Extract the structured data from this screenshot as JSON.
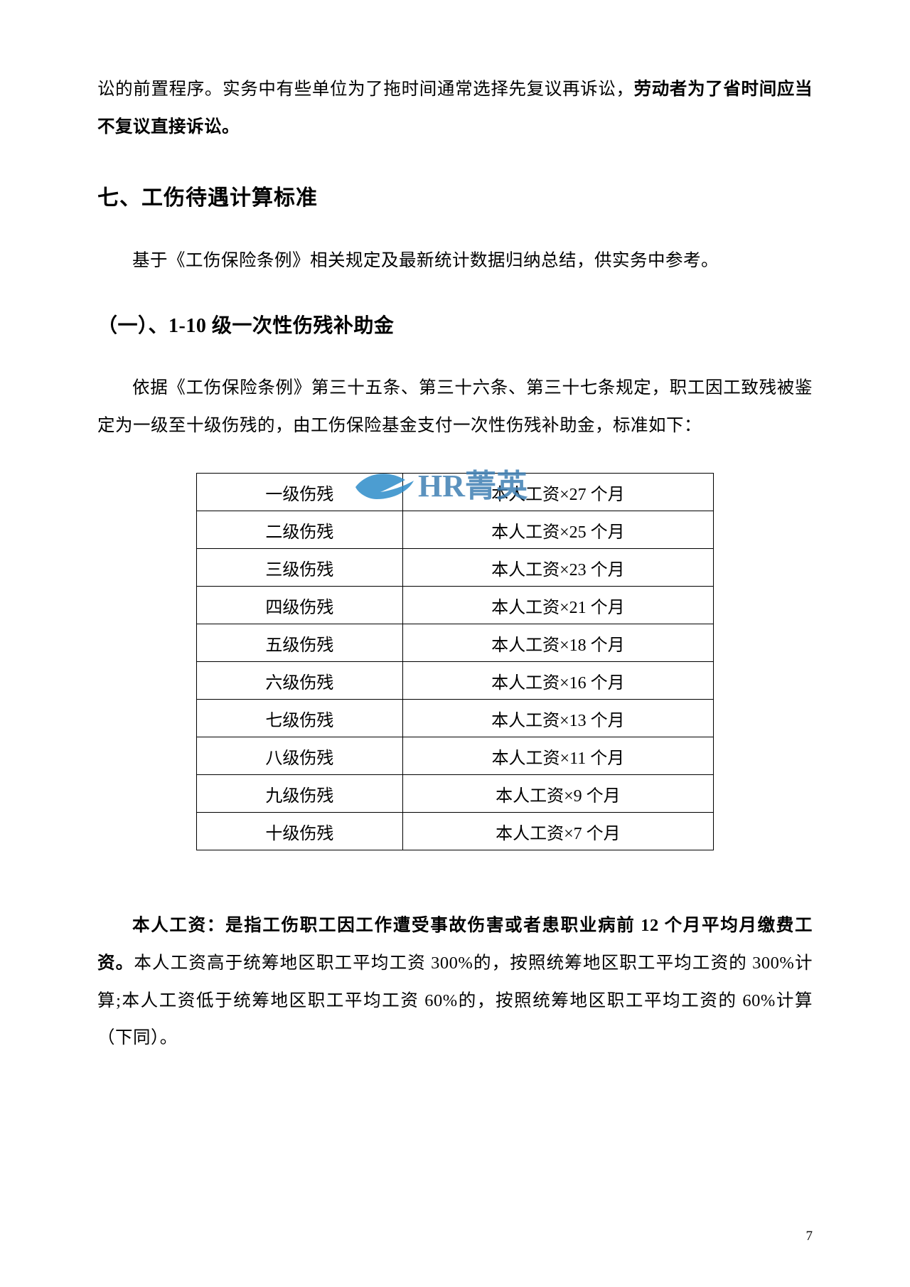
{
  "intro": {
    "part1": "讼的前置程序。实务中有些单位为了拖时间通常选择先复议再诉讼，",
    "bold": "劳动者为了省时间应当不复议直接诉讼。"
  },
  "heading7": "七、工伤待遇计算标准",
  "p_after_h7": "基于《工伤保险条例》相关规定及最新统计数据归纳总结，供实务中参考。",
  "heading71": "（一）、1-10 级一次性伤残补助金",
  "p_after_h71": "依据《工伤保险条例》第三十五条、第三十六条、第三十七条规定，职工因工致残被鉴定为一级至十级伤残的，由工伤保险基金支付一次性伤残补助金，标准如下：",
  "table": {
    "rows": [
      [
        "一级伤残",
        "本人工资×27 个月"
      ],
      [
        "二级伤残",
        "本人工资×25 个月"
      ],
      [
        "三级伤残",
        "本人工资×23 个月"
      ],
      [
        "四级伤残",
        "本人工资×21 个月"
      ],
      [
        "五级伤残",
        "本人工资×18 个月"
      ],
      [
        "六级伤残",
        "本人工资×16 个月"
      ],
      [
        "七级伤残",
        "本人工资×13 个月"
      ],
      [
        "八级伤残",
        "本人工资×11 个月"
      ],
      [
        "九级伤残",
        "本人工资×9 个月"
      ],
      [
        "十级伤残",
        "本人工资×7 个月"
      ]
    ]
  },
  "para_salary": {
    "bold": "本人工资：是指工伤职工因工作遭受事故伤害或者患职业病前 12 个月平均月缴费工资。",
    "rest": "本人工资高于统筹地区职工平均工资 300%的，按照统筹地区职工平均工资的 300%计算;本人工资低于统筹地区职工平均工资 60%的，按照统筹地区职工平均工资的 60%计算（下同）。"
  },
  "page_number": "7",
  "watermark": {
    "text": "HR菁英",
    "color": "#3e7fb3",
    "bird_color": "#2d8cc9"
  }
}
